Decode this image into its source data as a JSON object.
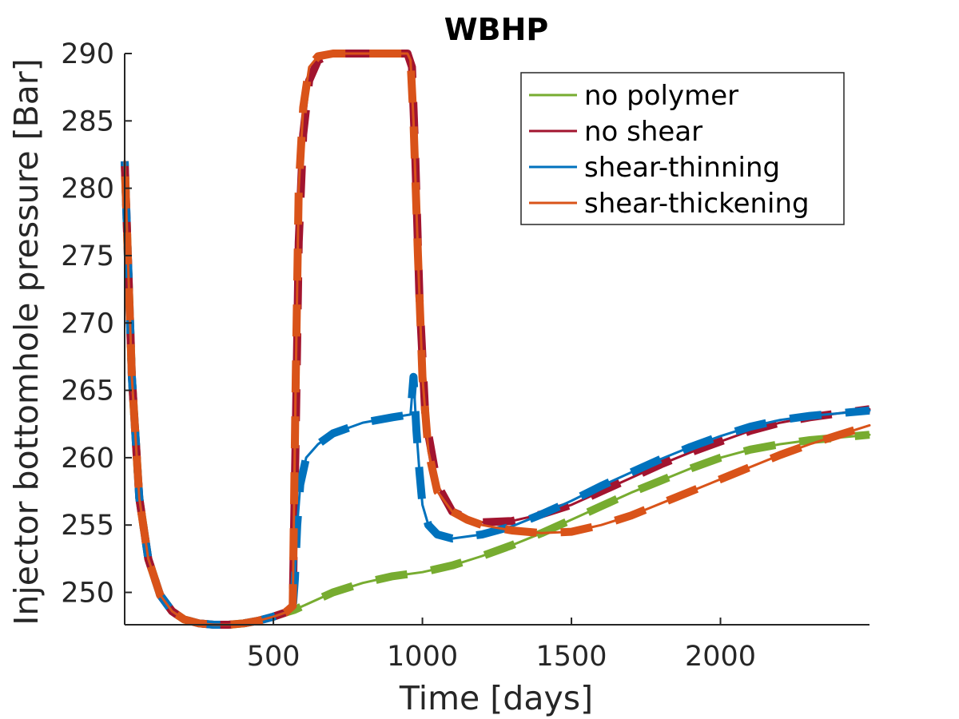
{
  "chart_data": {
    "type": "line",
    "title": "WBHP",
    "xlabel": "Time [days]",
    "ylabel": "Injector bottomhole pressure [Bar]",
    "xlim": [
      1,
      2500
    ],
    "ylim": [
      247.6,
      290
    ],
    "xticks": [
      500,
      1000,
      1500,
      2000
    ],
    "yticks": [
      250,
      255,
      260,
      265,
      270,
      275,
      280,
      285,
      290
    ],
    "grid": false,
    "legend_position": "top-right",
    "series": [
      {
        "name": "no polymer",
        "color": "#77AC30",
        "x": [
          1,
          10,
          25,
          50,
          80,
          120,
          160,
          200,
          250,
          300,
          350,
          400,
          450,
          500,
          540,
          570,
          600,
          700,
          800,
          900,
          1000,
          1100,
          1200,
          1300,
          1400,
          1500,
          1600,
          1700,
          1800,
          1900,
          2000,
          2100,
          2200,
          2300,
          2400,
          2500
        ],
        "y": [
          282,
          276,
          266,
          257,
          252.5,
          249.8,
          248.6,
          248,
          247.7,
          247.6,
          247.6,
          247.7,
          247.9,
          248.2,
          248.5,
          248.7,
          249,
          250,
          250.7,
          251.2,
          251.5,
          252,
          252.7,
          253.5,
          254.4,
          255.4,
          256.4,
          257.4,
          258.3,
          259.2,
          260,
          260.6,
          261,
          261.3,
          261.5,
          261.7
        ]
      },
      {
        "name": "no shear",
        "color": "#A2142F",
        "x": [
          1,
          10,
          25,
          50,
          80,
          120,
          160,
          200,
          250,
          300,
          350,
          400,
          450,
          500,
          540,
          565,
          575,
          585,
          600,
          620,
          650,
          700,
          800,
          900,
          950,
          965,
          975,
          990,
          1010,
          1050,
          1100,
          1150,
          1200,
          1300,
          1400,
          1500,
          1600,
          1700,
          1800,
          1900,
          2000,
          2100,
          2200,
          2300,
          2400,
          2500
        ],
        "y": [
          282,
          276,
          266,
          257,
          252.5,
          249.8,
          248.6,
          248,
          247.7,
          247.6,
          247.6,
          247.7,
          247.9,
          248.2,
          248.5,
          249,
          262,
          276,
          284,
          288,
          289.5,
          290,
          290,
          290,
          290,
          289,
          283,
          272,
          263,
          258,
          256,
          255.5,
          255.2,
          255.3,
          255.8,
          256.5,
          257.5,
          258.5,
          259.5,
          260.4,
          261.2,
          262,
          262.6,
          263,
          263.3,
          263.6
        ]
      },
      {
        "name": "shear-thinning",
        "color": "#0072BD",
        "x": [
          1,
          10,
          25,
          50,
          80,
          120,
          160,
          200,
          250,
          300,
          350,
          400,
          450,
          500,
          540,
          565,
          572,
          580,
          590,
          610,
          650,
          700,
          800,
          900,
          960,
          970,
          980,
          990,
          1000,
          1020,
          1050,
          1100,
          1200,
          1300,
          1400,
          1500,
          1600,
          1700,
          1800,
          1900,
          2000,
          2100,
          2200,
          2300,
          2400,
          2500
        ],
        "y": [
          282,
          276,
          266,
          257,
          252.5,
          249.8,
          248.6,
          248,
          247.7,
          247.6,
          247.6,
          247.7,
          247.9,
          248.2,
          248.5,
          248.8,
          251,
          255,
          258,
          260,
          261,
          261.8,
          262.6,
          263,
          263.2,
          266,
          262,
          259,
          256.5,
          255,
          254.3,
          254,
          254.3,
          254.9,
          255.8,
          256.8,
          257.9,
          258.9,
          259.9,
          260.8,
          261.6,
          262.3,
          262.8,
          263.1,
          263.3,
          263.5
        ]
      },
      {
        "name": "shear-thickening",
        "color": "#D95319",
        "x": [
          1,
          10,
          25,
          50,
          80,
          120,
          160,
          200,
          250,
          300,
          350,
          400,
          450,
          500,
          540,
          565,
          575,
          585,
          600,
          620,
          650,
          700,
          800,
          900,
          950,
          960,
          970,
          985,
          1000,
          1020,
          1050,
          1100,
          1150,
          1200,
          1300,
          1400,
          1500,
          1600,
          1700,
          1800,
          1900,
          2000,
          2100,
          2200,
          2300,
          2400,
          2500
        ],
        "y": [
          282,
          276,
          266,
          257,
          252.5,
          249.8,
          248.6,
          248,
          247.7,
          247.6,
          247.6,
          247.7,
          247.9,
          248.2,
          248.5,
          249,
          266,
          280,
          286,
          289,
          289.8,
          290,
          290,
          290,
          290,
          289.5,
          285,
          275,
          266,
          260.5,
          257.5,
          256,
          255.4,
          255,
          254.6,
          254.4,
          254.5,
          255,
          255.7,
          256.6,
          257.5,
          258.4,
          259.3,
          260.2,
          261,
          261.7,
          262.4
        ]
      }
    ]
  }
}
